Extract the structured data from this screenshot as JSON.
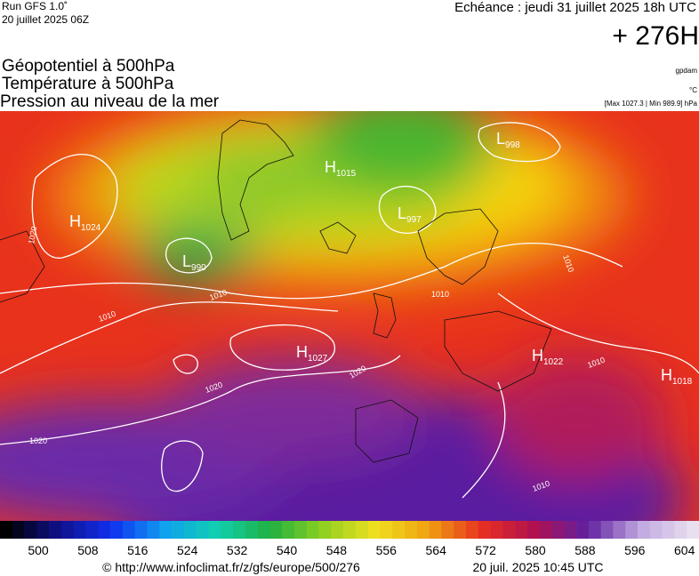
{
  "header": {
    "model": "Run GFS 1.0˚",
    "run": "20 juillet 2025 06Z",
    "valid": "Echéance : jeudi 31 juillet 2025 18h UTC",
    "lead": "+ 276H"
  },
  "titles": [
    "Géopotentiel à 500hPa",
    "Température à 500hPa",
    "Pression au niveau de la mer"
  ],
  "units": {
    "geopotential": "gpdam",
    "temperature": "°C",
    "pressure": "[Max 1027.3 | Min 989.9] hPa"
  },
  "centers": [
    {
      "symbol": "H",
      "value": 1024
    },
    {
      "symbol": "L",
      "value": 990
    },
    {
      "symbol": "H",
      "value": 1015
    },
    {
      "symbol": "L",
      "value": 997
    },
    {
      "symbol": "L",
      "value": 998
    },
    {
      "symbol": "H",
      "value": 1027
    },
    {
      "symbol": "H",
      "value": 1022
    },
    {
      "symbol": "H",
      "value": 1018
    }
  ],
  "contour_labels": [
    1020,
    1010,
    1010,
    1020,
    1020,
    1020,
    1010,
    1010,
    1010,
    1010
  ],
  "colorbar": {
    "ticks": [
      500,
      508,
      516,
      524,
      532,
      540,
      548,
      556,
      564,
      572,
      580,
      588,
      596,
      604
    ]
  },
  "footer": {
    "source": "© http://www.infoclimat.fr/z/gfs/europe/500/276",
    "date": "20 juil. 2025 10:45 UTC"
  }
}
